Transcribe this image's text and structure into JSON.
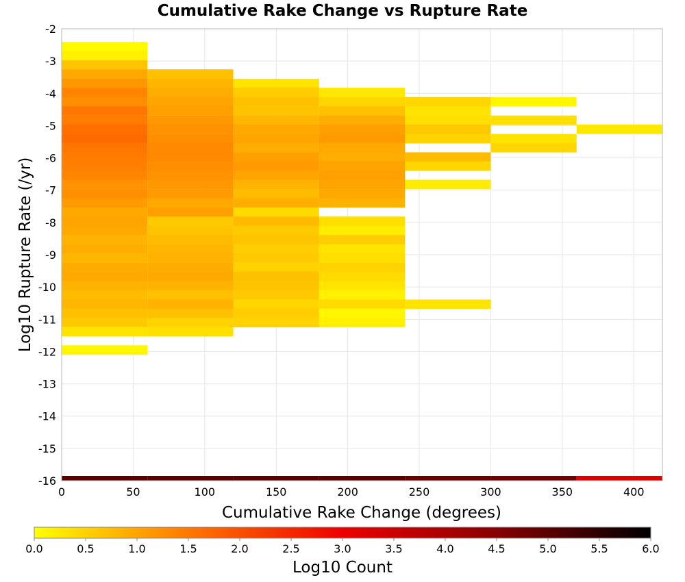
{
  "chart_data": {
    "type": "heatmap",
    "title": "Cumulative Rake Change vs Rupture Rate",
    "xlabel": "Cumulative Rake Change (degrees)",
    "ylabel": "Log10 Rupture Rate (/yr)",
    "xlim": [
      0,
      420
    ],
    "ylim": [
      -16,
      -2
    ],
    "x_ticks": [
      "0",
      "50",
      "100",
      "150",
      "200",
      "250",
      "300",
      "350",
      "400"
    ],
    "y_ticks": [
      "-2",
      "-3",
      "-4",
      "-5",
      "-6",
      "-7",
      "-8",
      "-9",
      "-10",
      "-11",
      "-12",
      "-13",
      "-14",
      "-15",
      "-16"
    ],
    "grid": true,
    "x_bin_width": 60,
    "y_bin_height": 0.285,
    "colorbar": {
      "label": "Log10 Count",
      "min": 0.0,
      "max": 6.0,
      "ticks": [
        "0.0",
        "0.5",
        "1.0",
        "1.5",
        "2.0",
        "2.5",
        "3.0",
        "3.5",
        "4.0",
        "4.5",
        "5.0",
        "5.5",
        "6.0"
      ],
      "placement": "bottom",
      "colors": [
        "#ffff00",
        "#ff7700",
        "#ee0000",
        "#880000",
        "#000000"
      ]
    },
    "columns": [
      {
        "x_start": 0,
        "cells": [
          {
            "y": -2.55,
            "v": 0.05
          },
          {
            "y": -2.83,
            "v": 0.15
          },
          {
            "y": -3.12,
            "v": 0.65
          },
          {
            "y": -3.4,
            "v": 0.95
          },
          {
            "y": -3.69,
            "v": 1.15
          },
          {
            "y": -3.97,
            "v": 1.35
          },
          {
            "y": -4.26,
            "v": 1.25
          },
          {
            "y": -4.54,
            "v": 1.5
          },
          {
            "y": -4.83,
            "v": 1.45
          },
          {
            "y": -5.11,
            "v": 1.6
          },
          {
            "y": -5.4,
            "v": 1.65
          },
          {
            "y": -5.68,
            "v": 1.5
          },
          {
            "y": -5.97,
            "v": 1.45
          },
          {
            "y": -6.25,
            "v": 1.4
          },
          {
            "y": -6.54,
            "v": 1.35
          },
          {
            "y": -6.82,
            "v": 1.2
          },
          {
            "y": -7.11,
            "v": 1.25
          },
          {
            "y": -7.39,
            "v": 1.1
          },
          {
            "y": -7.68,
            "v": 0.95
          },
          {
            "y": -7.96,
            "v": 1.0
          },
          {
            "y": -8.25,
            "v": 0.95
          },
          {
            "y": -8.53,
            "v": 0.85
          },
          {
            "y": -8.82,
            "v": 0.9
          },
          {
            "y": -9.1,
            "v": 0.8
          },
          {
            "y": -9.39,
            "v": 0.9
          },
          {
            "y": -9.67,
            "v": 0.95
          },
          {
            "y": -9.96,
            "v": 0.85
          },
          {
            "y": -10.24,
            "v": 0.75
          },
          {
            "y": -10.53,
            "v": 0.8
          },
          {
            "y": -10.81,
            "v": 0.7
          },
          {
            "y": -11.1,
            "v": 0.6
          },
          {
            "y": -11.38,
            "v": 0.3
          },
          {
            "y": -11.95,
            "v": 0.1
          }
        ]
      },
      {
        "x_start": 60,
        "cells": [
          {
            "y": -3.4,
            "v": 0.7
          },
          {
            "y": -3.69,
            "v": 0.8
          },
          {
            "y": -3.97,
            "v": 0.9
          },
          {
            "y": -4.26,
            "v": 1.0
          },
          {
            "y": -4.54,
            "v": 1.05
          },
          {
            "y": -4.83,
            "v": 1.15
          },
          {
            "y": -5.11,
            "v": 1.2
          },
          {
            "y": -5.4,
            "v": 1.25
          },
          {
            "y": -5.68,
            "v": 1.3
          },
          {
            "y": -5.97,
            "v": 1.3
          },
          {
            "y": -6.25,
            "v": 1.25
          },
          {
            "y": -6.54,
            "v": 1.2
          },
          {
            "y": -6.82,
            "v": 1.15
          },
          {
            "y": -7.11,
            "v": 1.1
          },
          {
            "y": -7.39,
            "v": 0.95
          },
          {
            "y": -7.68,
            "v": 1.05
          },
          {
            "y": -7.96,
            "v": 0.6
          },
          {
            "y": -8.25,
            "v": 0.65
          },
          {
            "y": -8.53,
            "v": 0.75
          },
          {
            "y": -8.82,
            "v": 0.8
          },
          {
            "y": -9.1,
            "v": 0.85
          },
          {
            "y": -9.39,
            "v": 0.9
          },
          {
            "y": -9.67,
            "v": 0.95
          },
          {
            "y": -9.96,
            "v": 0.85
          },
          {
            "y": -10.24,
            "v": 0.7
          },
          {
            "y": -10.53,
            "v": 0.85
          },
          {
            "y": -10.81,
            "v": 0.7
          },
          {
            "y": -11.1,
            "v": 0.5
          },
          {
            "y": -11.38,
            "v": 0.35
          }
        ]
      },
      {
        "x_start": 120,
        "cells": [
          {
            "y": -3.69,
            "v": 0.3
          },
          {
            "y": -3.97,
            "v": 0.55
          },
          {
            "y": -4.26,
            "v": 0.7
          },
          {
            "y": -4.54,
            "v": 0.65
          },
          {
            "y": -4.83,
            "v": 0.8
          },
          {
            "y": -5.11,
            "v": 0.95
          },
          {
            "y": -5.4,
            "v": 1.0
          },
          {
            "y": -5.68,
            "v": 0.9
          },
          {
            "y": -5.97,
            "v": 1.05
          },
          {
            "y": -6.25,
            "v": 1.1
          },
          {
            "y": -6.54,
            "v": 1.0
          },
          {
            "y": -6.82,
            "v": 0.85
          },
          {
            "y": -7.11,
            "v": 0.75
          },
          {
            "y": -7.39,
            "v": 0.9
          },
          {
            "y": -7.68,
            "v": 0.4
          },
          {
            "y": -7.96,
            "v": 0.75
          },
          {
            "y": -8.25,
            "v": 0.6
          },
          {
            "y": -8.53,
            "v": 0.65
          },
          {
            "y": -8.82,
            "v": 0.55
          },
          {
            "y": -9.1,
            "v": 0.6
          },
          {
            "y": -9.39,
            "v": 0.5
          },
          {
            "y": -9.67,
            "v": 0.7
          },
          {
            "y": -9.96,
            "v": 0.65
          },
          {
            "y": -10.24,
            "v": 0.6
          },
          {
            "y": -10.53,
            "v": 0.45
          },
          {
            "y": -10.81,
            "v": 0.55
          },
          {
            "y": -11.1,
            "v": 0.5
          }
        ]
      },
      {
        "x_start": 180,
        "cells": [
          {
            "y": -3.97,
            "v": 0.25
          },
          {
            "y": -4.26,
            "v": 0.45
          },
          {
            "y": -4.54,
            "v": 0.7
          },
          {
            "y": -4.83,
            "v": 0.9
          },
          {
            "y": -5.11,
            "v": 1.05
          },
          {
            "y": -5.4,
            "v": 1.1
          },
          {
            "y": -5.68,
            "v": 0.95
          },
          {
            "y": -5.97,
            "v": 0.9
          },
          {
            "y": -6.25,
            "v": 1.0
          },
          {
            "y": -6.54,
            "v": 1.05
          },
          {
            "y": -6.82,
            "v": 1.0
          },
          {
            "y": -7.11,
            "v": 0.95
          },
          {
            "y": -7.39,
            "v": 0.85
          },
          {
            "y": -7.96,
            "v": 0.35
          },
          {
            "y": -8.25,
            "v": 0.2
          },
          {
            "y": -8.53,
            "v": 0.55
          },
          {
            "y": -8.82,
            "v": 0.3
          },
          {
            "y": -9.1,
            "v": 0.35
          },
          {
            "y": -9.39,
            "v": 0.5
          },
          {
            "y": -9.67,
            "v": 0.4
          },
          {
            "y": -9.96,
            "v": 0.3
          },
          {
            "y": -10.24,
            "v": 0.15
          },
          {
            "y": -10.53,
            "v": 0.4
          },
          {
            "y": -10.81,
            "v": 0.1
          },
          {
            "y": -11.1,
            "v": 0.15
          }
        ]
      },
      {
        "x_start": 240,
        "cells": [
          {
            "y": -4.26,
            "v": 0.45
          },
          {
            "y": -4.54,
            "v": 0.3
          },
          {
            "y": -4.83,
            "v": 0.35
          },
          {
            "y": -5.11,
            "v": 0.6
          },
          {
            "y": -5.4,
            "v": 0.5
          },
          {
            "y": -5.97,
            "v": 0.75
          },
          {
            "y": -6.25,
            "v": 0.45
          },
          {
            "y": -6.82,
            "v": 0.2
          },
          {
            "y": -10.53,
            "v": 0.3
          }
        ]
      },
      {
        "x_start": 300,
        "cells": [
          {
            "y": -4.26,
            "v": 0.1
          },
          {
            "y": -4.83,
            "v": 0.35
          },
          {
            "y": -5.4,
            "v": 0.3
          },
          {
            "y": -5.68,
            "v": 0.45
          }
        ]
      },
      {
        "x_start": 360,
        "cells": [
          {
            "y": -5.11,
            "v": 0.25
          }
        ]
      }
    ],
    "floor_row": {
      "y": -16,
      "values": [
        5.0,
        5.0,
        5.0,
        5.0,
        4.85,
        4.75,
        3.3
      ]
    }
  }
}
